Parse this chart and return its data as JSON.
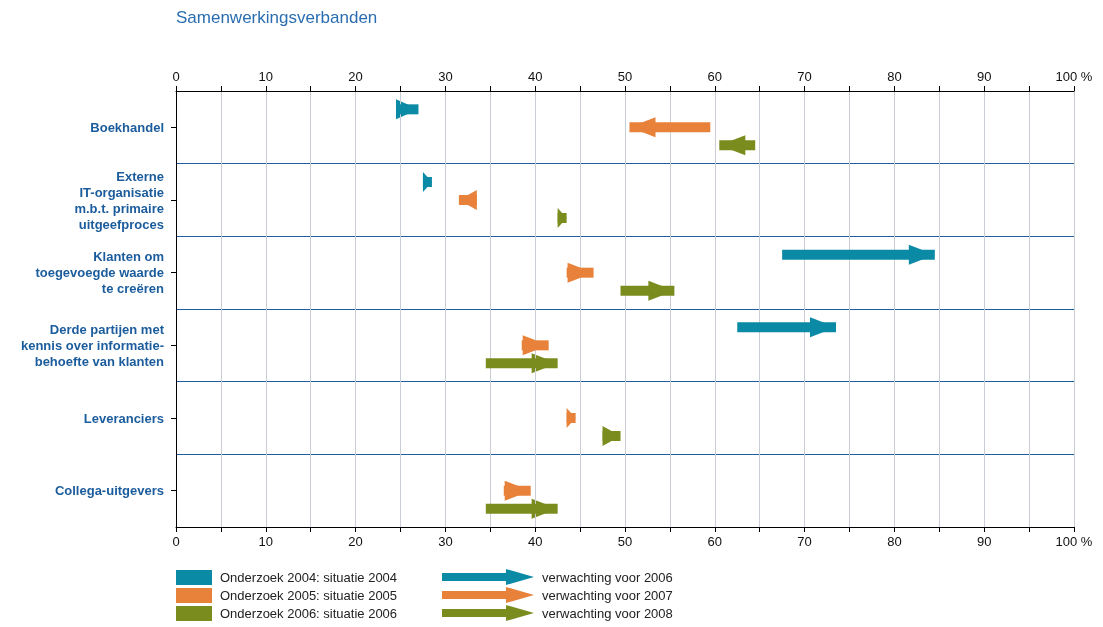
{
  "chart_data": {
    "type": "bar",
    "orientation": "horizontal",
    "title": "Samenwerkingsverbanden",
    "categories": [
      "Boekhandel",
      "Externe\nIT-organisatie\nm.b.t. primaire\nuitgeefproces",
      "Klanten om\ntoegevoegde waarde\nte creëren",
      "Derde partijen met\nkennis over informatie-\nbehoefte van klanten",
      "Leveranciers",
      "Collega-uitgevers"
    ],
    "series": [
      {
        "name": "Onderzoek 2004: situatie 2004",
        "color": "#0b8aa6",
        "base": [
          24.5,
          27.5,
          67.5,
          62.5,
          null,
          null
        ],
        "values": [
          2.5,
          1,
          17,
          11,
          null,
          null
        ]
      },
      {
        "name": "Onderzoek 2005: situatie 2005",
        "color": "#e8823a",
        "base": [
          59.5,
          33.5,
          43.5,
          38.5,
          43.5,
          36.5
        ],
        "values": [
          -9,
          -2,
          3,
          3,
          1,
          3
        ]
      },
      {
        "name": "Onderzoek 2006: situatie 2006",
        "color": "#7b8c1f",
        "base": [
          64.5,
          42.5,
          49.5,
          34.5,
          47.5,
          34.5
        ],
        "values": [
          -4,
          1,
          6,
          8,
          2,
          8
        ]
      }
    ],
    "annotations": [
      "verwachting voor 2006",
      "verwachting voor 2007",
      "verwachting voor 2008"
    ],
    "xlim": [
      0,
      100
    ],
    "xticks": [
      0,
      {
        "value": 5,
        "label": null
      },
      10,
      {
        "value": 15,
        "label": null
      },
      20,
      {
        "value": 25,
        "label": null
      },
      30,
      {
        "value": 35,
        "label": null
      },
      40,
      {
        "value": 45,
        "label": null
      },
      50,
      {
        "value": 55,
        "label": null
      },
      60,
      {
        "value": 65,
        "label": null
      },
      70,
      {
        "value": 75,
        "label": null
      },
      80,
      {
        "value": 85,
        "label": null
      },
      90,
      {
        "value": 95,
        "label": null
      },
      {
        "value": 100,
        "label": "100 %"
      }
    ],
    "x2lim": [
      0,
      100
    ],
    "x2ticks": [
      0,
      {
        "value": 5,
        "label": null
      },
      10,
      {
        "value": 15,
        "label": null
      },
      20,
      {
        "value": 25,
        "label": null
      },
      30,
      {
        "value": 35,
        "label": null
      },
      40,
      {
        "value": 45,
        "label": null
      },
      50,
      {
        "value": 55,
        "label": null
      },
      60,
      {
        "value": 65,
        "label": null
      },
      70,
      {
        "value": 75,
        "label": null
      },
      80,
      {
        "value": 85,
        "label": null
      },
      90,
      {
        "value": 95,
        "label": null
      },
      {
        "value": 100,
        "label": "100 %"
      }
    ],
    "grid": true,
    "legend": "bottom left"
  }
}
